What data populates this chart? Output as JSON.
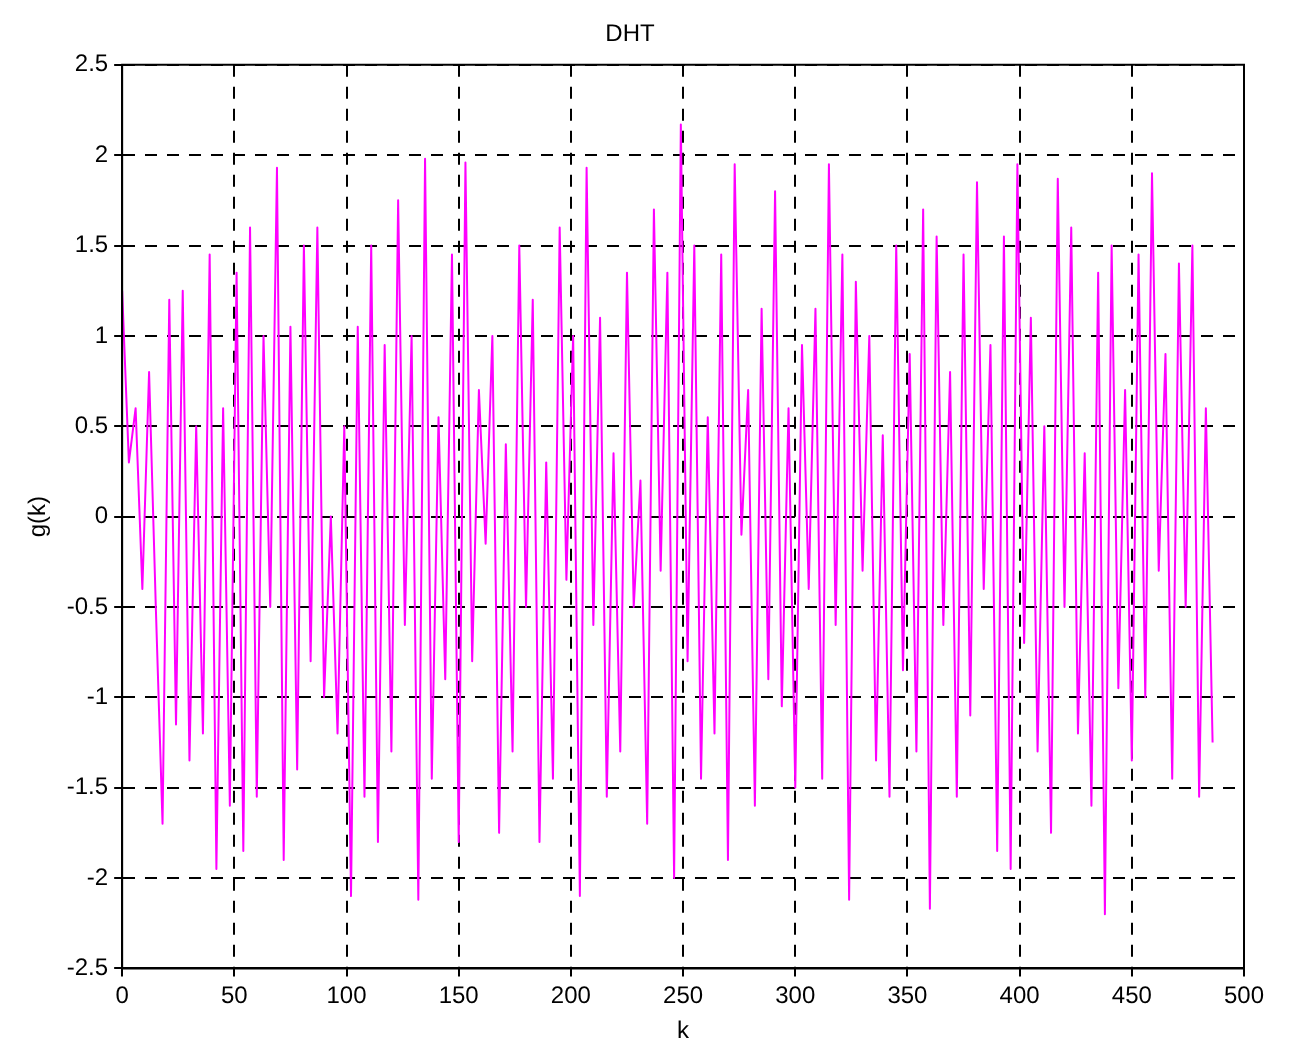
{
  "chart_data": {
    "type": "line",
    "title": "DHT",
    "xlabel": "k",
    "ylabel": "g(k)",
    "xlim": [
      0,
      500
    ],
    "xticks": [
      0,
      50,
      100,
      150,
      200,
      250,
      300,
      350,
      400,
      450,
      500
    ],
    "ylim": [
      -2.5,
      2.5
    ],
    "yticks": [
      -2.5,
      -2,
      -1.5,
      -1,
      -0.5,
      0,
      0.5,
      1,
      1.5,
      2,
      2.5
    ],
    "grid": true,
    "legend": false,
    "marker": "none",
    "line_style": "solid",
    "series": [
      {
        "color": "#ff00ff",
        "x": [
          0,
          3,
          6,
          9,
          12,
          15,
          18,
          21,
          24,
          27,
          30,
          33,
          36,
          39,
          42,
          45,
          48,
          51,
          54,
          57,
          60,
          63,
          66,
          69,
          72,
          75,
          78,
          81,
          84,
          87,
          90,
          93,
          96,
          99,
          102,
          105,
          108,
          111,
          114,
          117,
          120,
          123,
          126,
          129,
          132,
          135,
          138,
          141,
          144,
          147,
          150,
          153,
          156,
          159,
          162,
          165,
          168,
          171,
          174,
          177,
          180,
          183,
          186,
          189,
          192,
          195,
          198,
          201,
          204,
          207,
          210,
          213,
          216,
          219,
          222,
          225,
          228,
          231,
          234,
          237,
          240,
          243,
          246,
          249,
          252,
          255,
          258,
          261,
          264,
          267,
          270,
          273,
          276,
          279,
          282,
          285,
          288,
          291,
          294,
          297,
          300,
          303,
          306,
          309,
          312,
          315,
          318,
          321,
          324,
          327,
          330,
          333,
          336,
          339,
          342,
          345,
          348,
          351,
          354,
          357,
          360,
          363,
          366,
          369,
          372,
          375,
          378,
          381,
          384,
          387,
          390,
          393,
          396,
          399,
          402,
          405,
          408,
          411,
          414,
          417,
          420,
          423,
          426,
          429,
          432,
          435,
          438,
          441,
          444,
          447,
          450,
          453,
          456,
          459,
          462,
          465,
          468,
          471,
          474,
          477,
          480,
          483,
          486
        ],
        "values": [
          1.25,
          0.3,
          0.6,
          -0.4,
          0.8,
          -0.5,
          -1.7,
          1.2,
          -1.15,
          1.25,
          -1.35,
          0.5,
          -1.2,
          1.45,
          -1.95,
          0.6,
          -1.6,
          1.35,
          -1.85,
          1.6,
          -1.55,
          1.0,
          -0.5,
          1.93,
          -1.9,
          1.05,
          -1.4,
          1.5,
          -0.8,
          1.6,
          -1.0,
          0.0,
          -1.2,
          0.5,
          -2.1,
          1.05,
          -1.55,
          1.5,
          -1.8,
          0.95,
          -1.3,
          1.75,
          -0.6,
          1.0,
          -2.12,
          1.98,
          -1.45,
          0.55,
          -0.9,
          1.45,
          -1.8,
          1.96,
          -0.8,
          0.7,
          -0.15,
          1.0,
          -1.75,
          0.4,
          -1.3,
          1.5,
          -0.5,
          1.2,
          -1.8,
          0.3,
          -1.45,
          1.6,
          -0.35,
          1.0,
          -2.1,
          1.93,
          -0.6,
          1.1,
          -1.55,
          0.35,
          -1.3,
          1.35,
          -0.5,
          0.2,
          -1.7,
          1.7,
          -0.3,
          1.35,
          -2.0,
          2.17,
          -0.8,
          1.5,
          -1.45,
          0.55,
          -1.2,
          1.45,
          -1.9,
          1.95,
          -0.1,
          0.7,
          -1.6,
          1.15,
          -0.9,
          1.8,
          -1.05,
          0.6,
          -1.5,
          0.95,
          -0.4,
          1.15,
          -1.45,
          1.95,
          -0.6,
          1.45,
          -2.12,
          1.3,
          -0.3,
          1.0,
          -1.35,
          0.45,
          -1.55,
          1.5,
          -0.85,
          0.9,
          -1.3,
          1.7,
          -2.17,
          1.55,
          -0.6,
          0.8,
          -1.55,
          1.45,
          -1.1,
          1.85,
          -0.4,
          0.95,
          -1.85,
          1.55,
          -1.95,
          1.95,
          -0.7,
          1.1,
          -1.3,
          0.5,
          -1.75,
          1.87,
          -0.5,
          1.6,
          -1.2,
          0.35,
          -1.6,
          1.35,
          -2.2,
          1.5,
          -0.95,
          0.7,
          -1.35,
          1.45,
          -1.0,
          1.9,
          -0.3,
          0.9,
          -1.45,
          1.4,
          -0.5,
          1.5,
          -1.55,
          0.6,
          -1.25
        ]
      }
    ]
  }
}
